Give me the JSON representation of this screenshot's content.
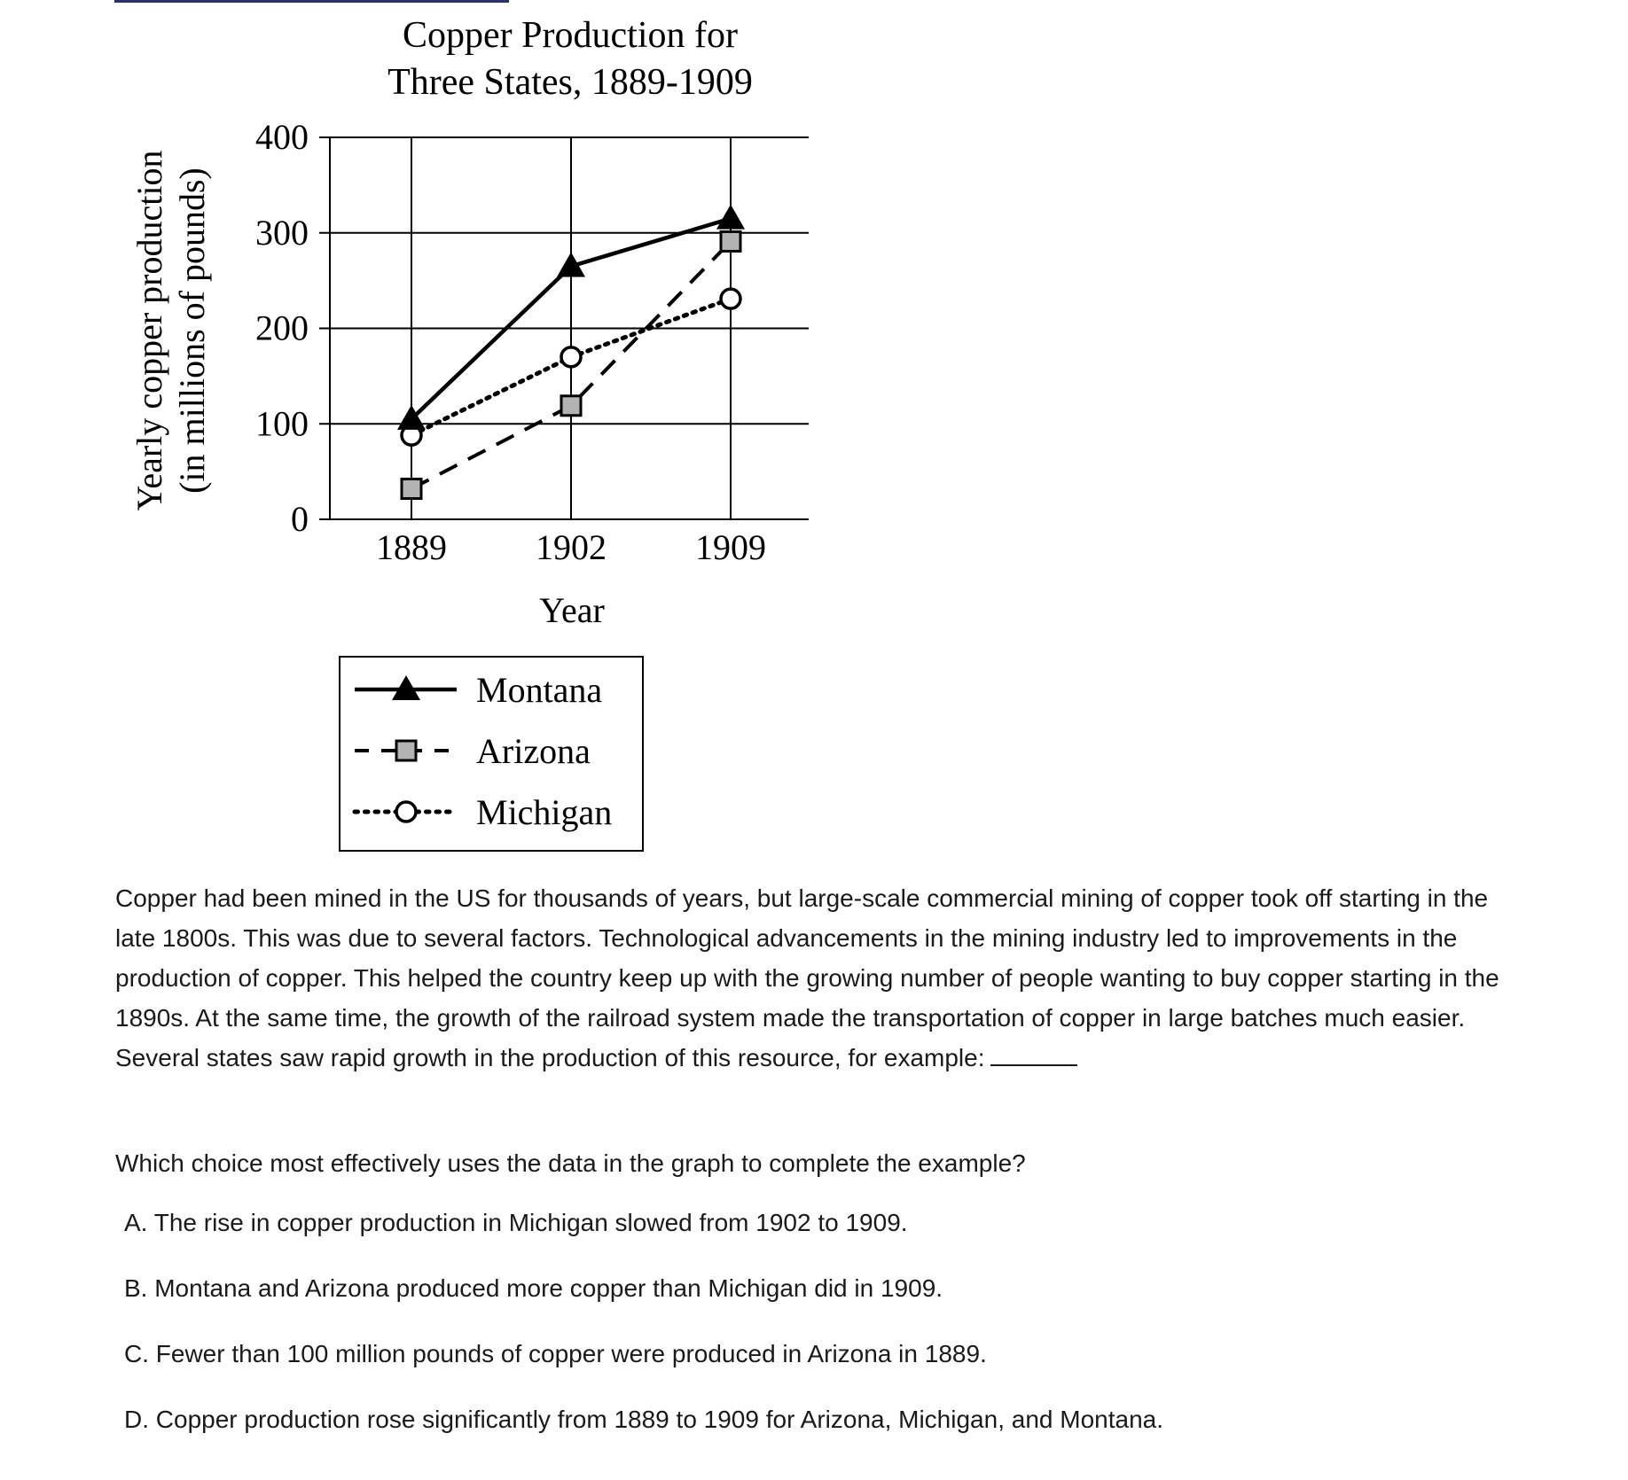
{
  "chart_data": {
    "type": "line",
    "title": [
      "Copper Production for",
      "Three States, 1889-1909"
    ],
    "ylabel": [
      "Yearly copper production",
      "(in millions of pounds)"
    ],
    "xlabel": "Year",
    "x": [
      "1889",
      "1902",
      "1909"
    ],
    "ylim": [
      0,
      400
    ],
    "yticks": [
      0,
      100,
      200,
      300,
      400
    ],
    "grid": true,
    "legend_position": "below",
    "series": [
      {
        "name": "Montana",
        "values": [
          105,
          265,
          315
        ],
        "line_style": "solid",
        "marker": "filled-triangle",
        "color": "#000000"
      },
      {
        "name": "Arizona",
        "values": [
          32,
          119,
          291
        ],
        "line_style": "dashed",
        "marker": "gray-square",
        "color": "#000000",
        "marker_fill": "#b3b3b3"
      },
      {
        "name": "Michigan",
        "values": [
          88,
          170,
          231
        ],
        "line_style": "dotted",
        "marker": "open-circle",
        "color": "#000000"
      }
    ]
  },
  "passage": "Copper had been mined in the US for thousands of years, but large-scale commercial mining of copper took off starting in the late 1800s. This was due to several factors. Technological advancements in the mining industry led to improvements in the production of copper. This helped the country keep up with the growing number of people wanting to buy copper starting in the 1890s. At the same time, the growth of the railroad system made the transportation of copper in large batches much easier. Several states saw rapid growth in the production of this resource, for example:",
  "question": "Which choice most effectively uses the data in the graph to complete the example?",
  "choices": [
    "A. The rise in copper production in Michigan slowed from 1902 to 1909.",
    "B. Montana and Arizona produced more copper than Michigan did in 1909.",
    "C. Fewer than 100 million pounds of copper were produced in Arizona in 1889.",
    "D. Copper production rose significantly from 1889 to 1909 for Arizona, Michigan, and Montana."
  ]
}
